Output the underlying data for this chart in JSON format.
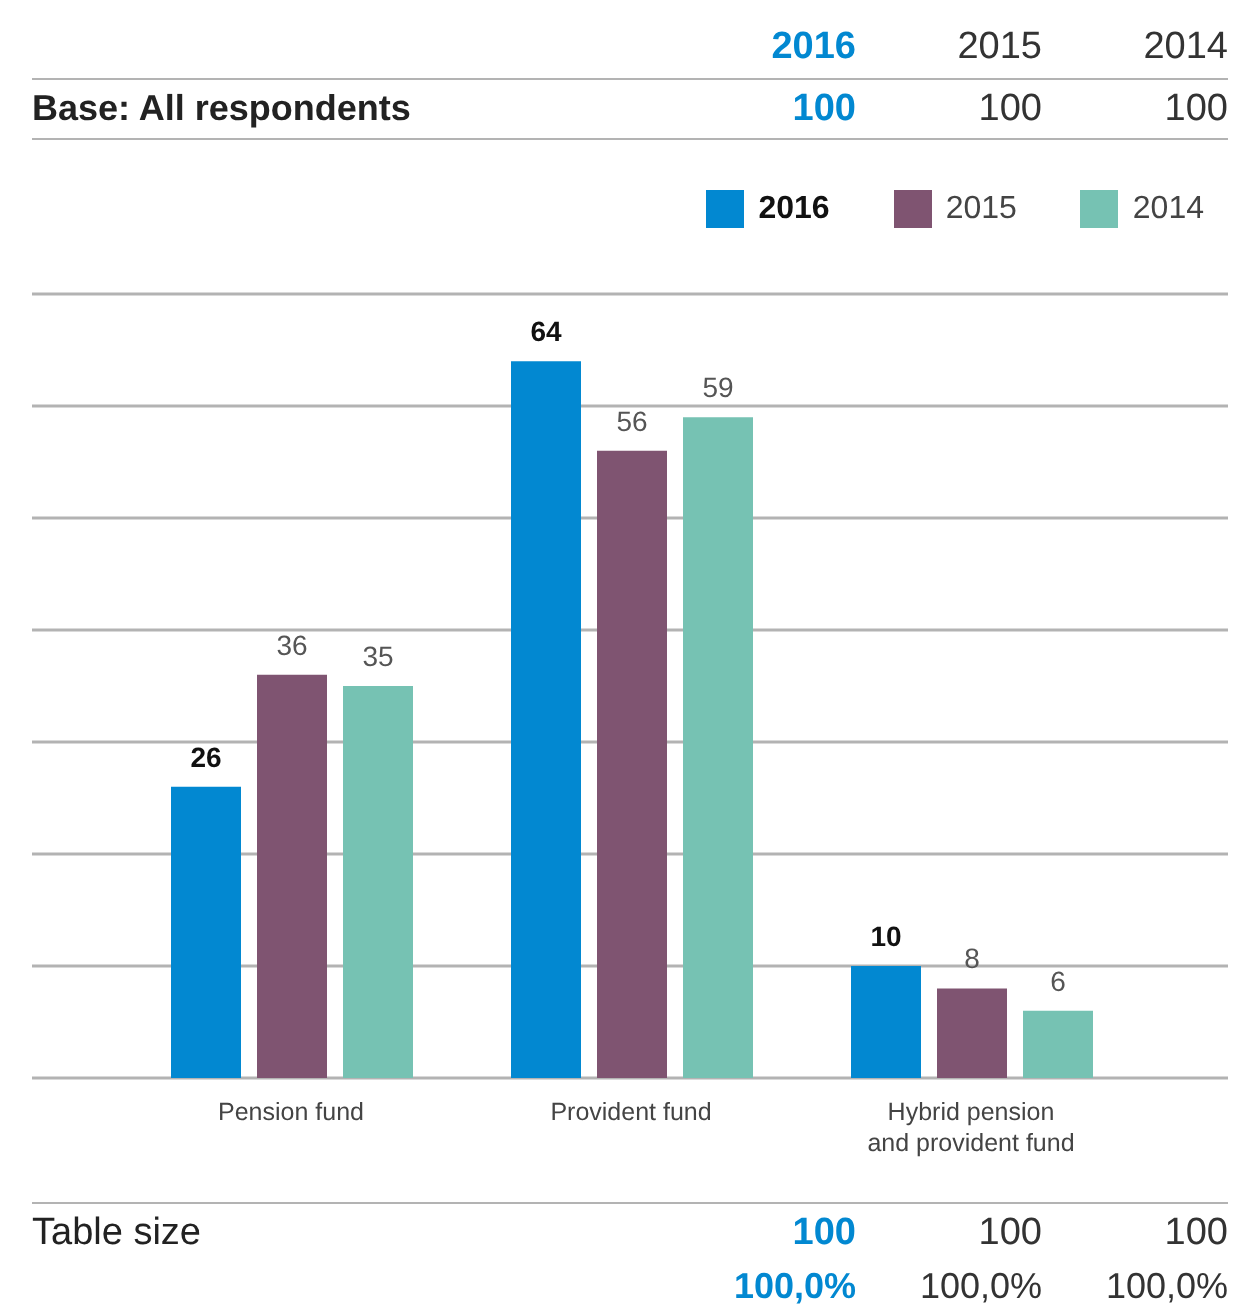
{
  "chart_data": {
    "type": "bar",
    "categories": [
      "Pension fund",
      "Provident fund",
      "Hybrid pension and provident fund"
    ],
    "series": [
      {
        "name": "2016",
        "color": "#0288d1",
        "values": [
          26,
          64,
          10
        ]
      },
      {
        "name": "2015",
        "color": "#7f5471",
        "values": [
          36,
          56,
          8
        ]
      },
      {
        "name": "2014",
        "color": "#76c2b3",
        "values": [
          35,
          59,
          6
        ]
      }
    ],
    "grid": "y",
    "legend": "top right",
    "data_labels": true,
    "tick_labels": "x",
    "annotations": [
      "Base: All respondents",
      "100",
      "100",
      "100",
      "Table size",
      "100",
      "100",
      "100",
      "100,0%",
      "100,0%",
      "100,0%"
    ]
  }
}
